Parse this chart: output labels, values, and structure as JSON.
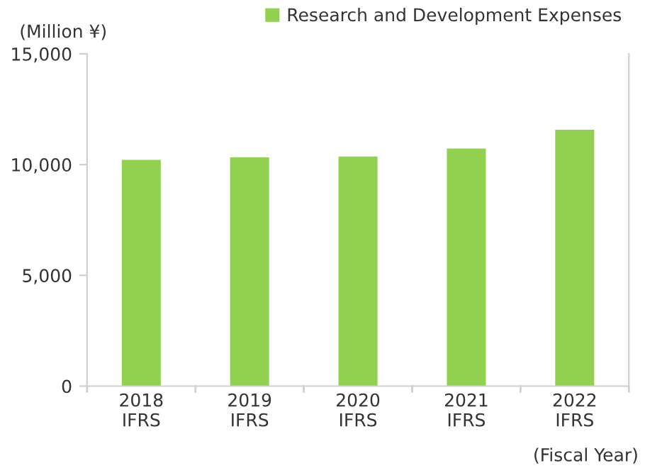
{
  "chart_data": {
    "type": "bar",
    "categories": [
      "2018\nIFRS",
      "2019\nIFRS",
      "2020\nIFRS",
      "2021\nIFRS",
      "2022\nIFRS"
    ],
    "series": [
      {
        "name": "Research and Development Expenses",
        "color": "#92d050",
        "values": [
          10210,
          10320,
          10360,
          10720,
          11570
        ]
      }
    ],
    "ylim": [
      0,
      15000
    ],
    "yticks": [
      {
        "value": 0,
        "label": "0"
      },
      {
        "value": 5000,
        "label": "5,000"
      },
      {
        "value": 10000,
        "label": "10,000"
      },
      {
        "value": 15000,
        "label": "15,000"
      }
    ],
    "ylabel": "(Million ¥)",
    "xlabel": "(Fiscal Year)",
    "legend": "top right",
    "grid": false
  }
}
